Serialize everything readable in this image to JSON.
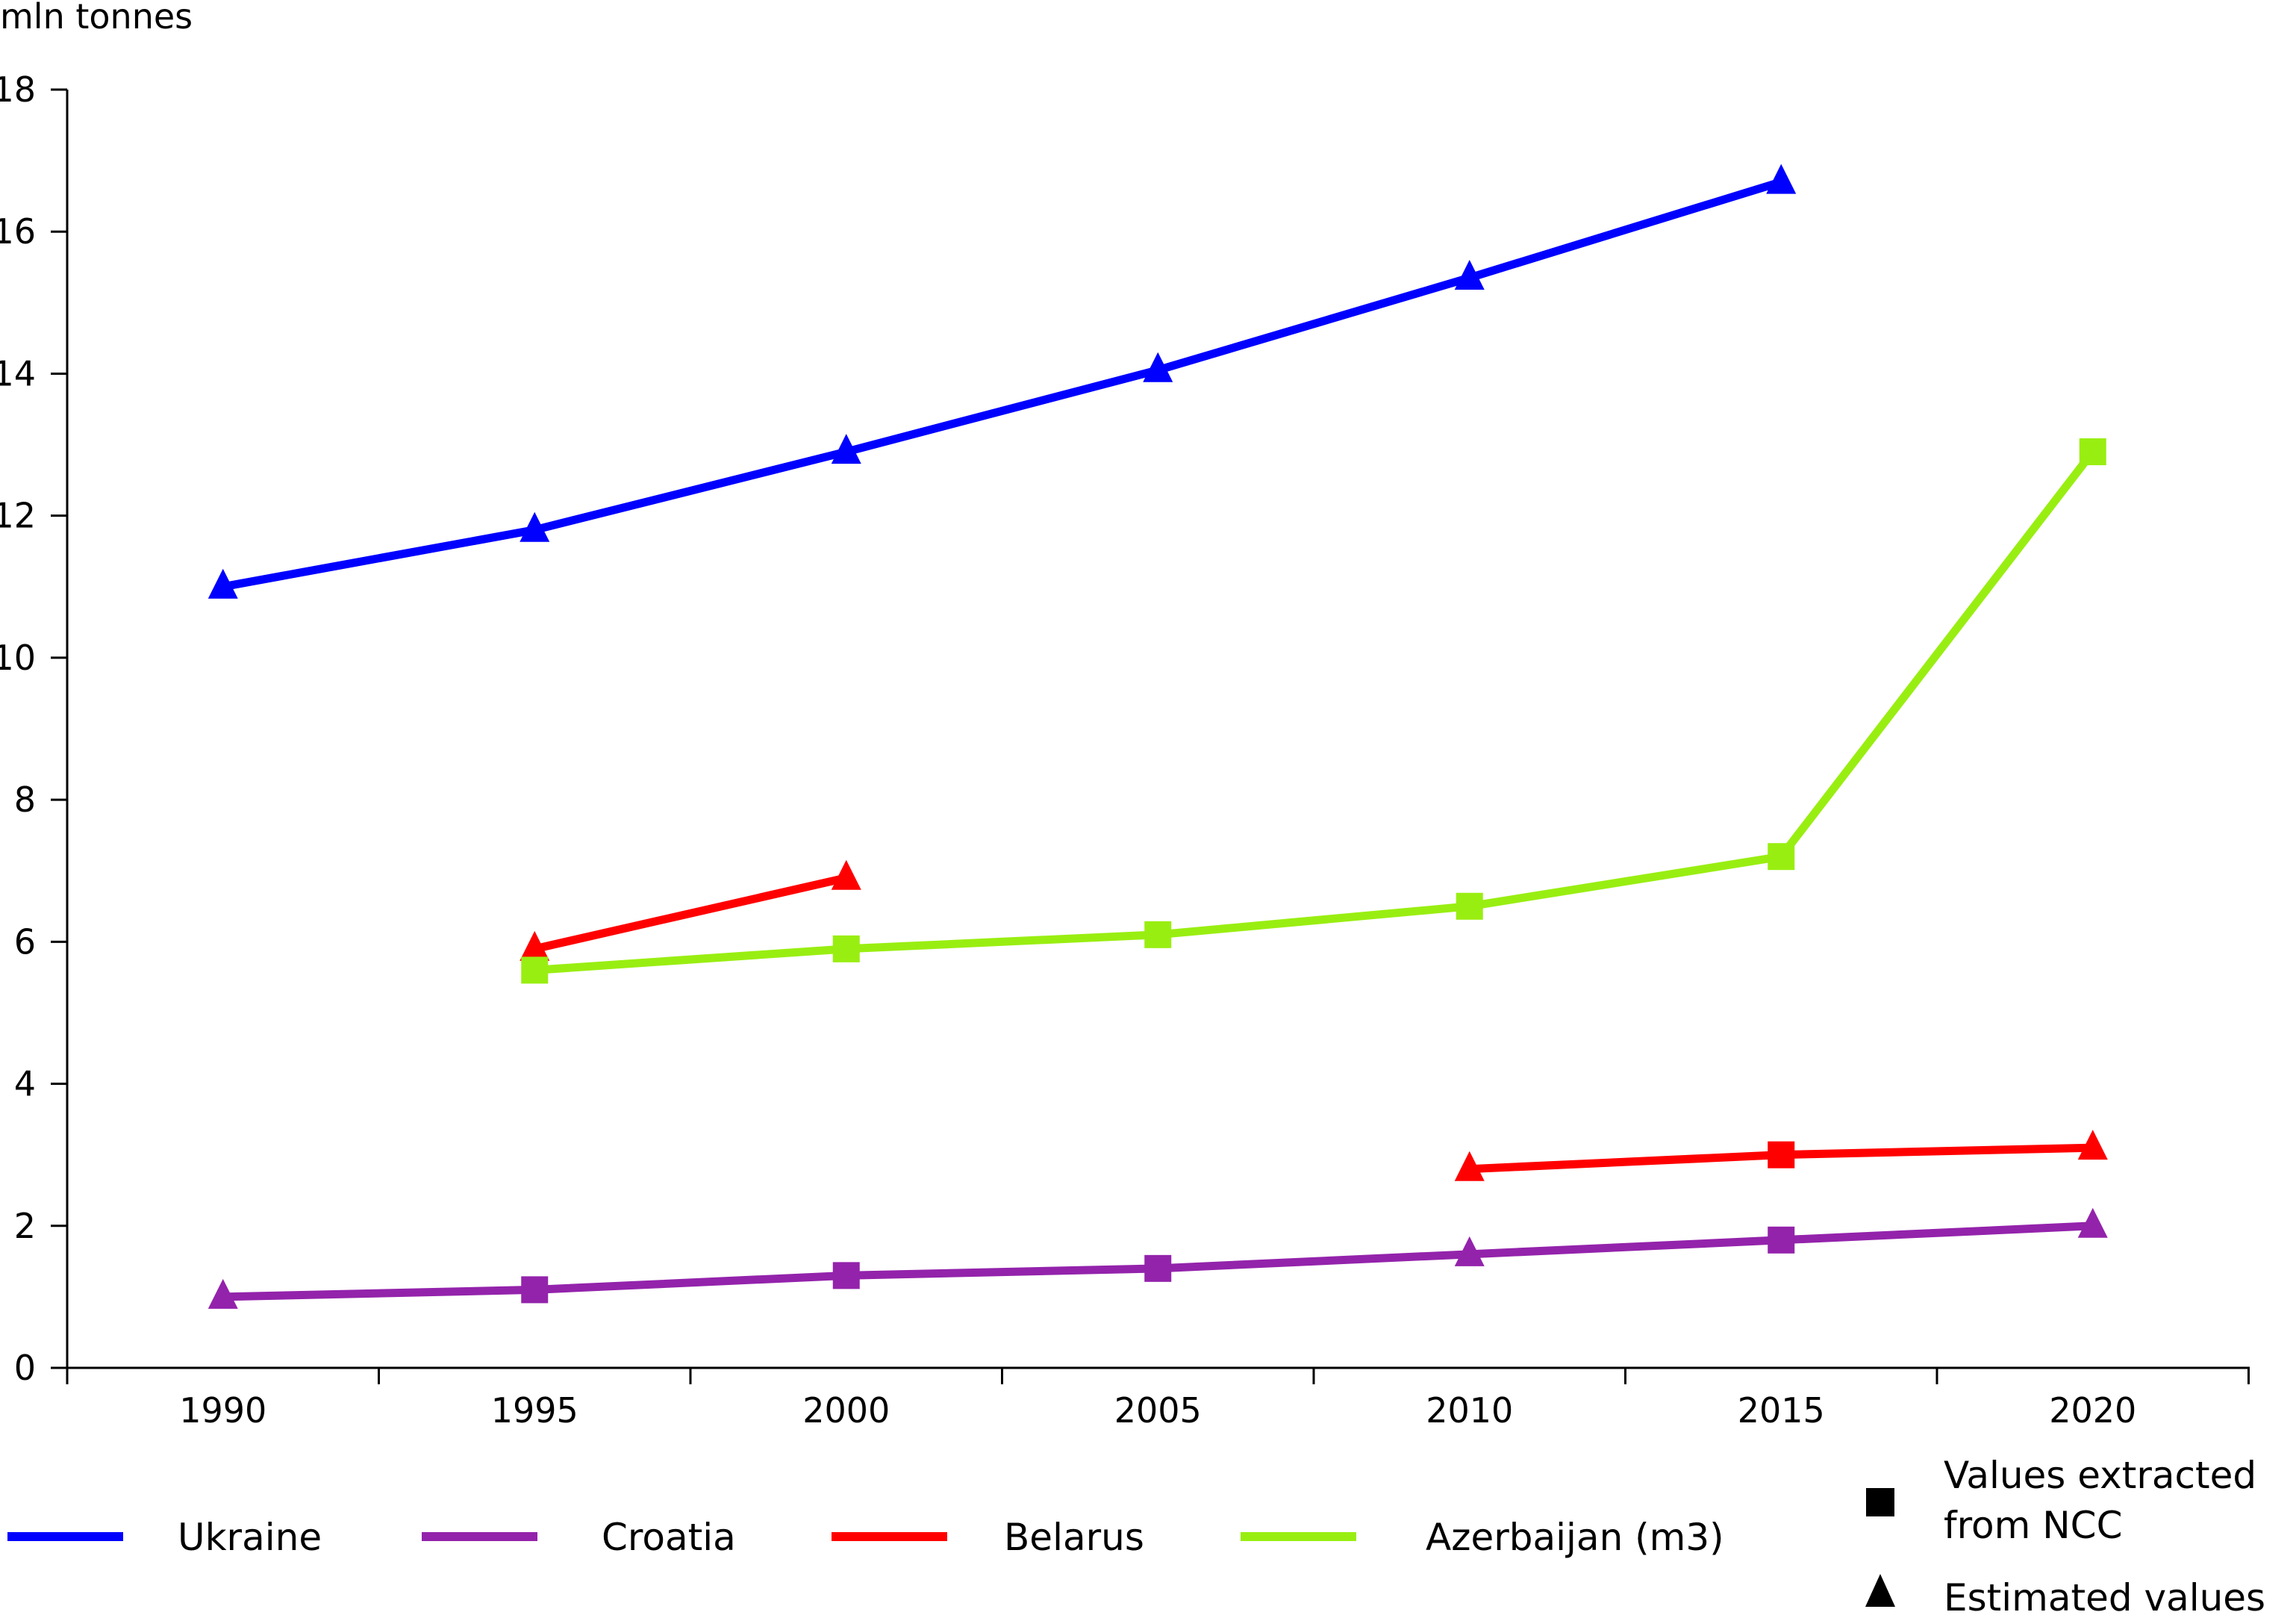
{
  "chart_data": {
    "type": "line",
    "ylabel": "mln tonnes",
    "ylim": [
      0,
      18
    ],
    "yticks": [
      0,
      2,
      4,
      6,
      8,
      10,
      12,
      14,
      16,
      18
    ],
    "categories": [
      "1990",
      "1995",
      "2000",
      "2005",
      "2010",
      "2015",
      "2020"
    ],
    "grid": false,
    "legend_position": "bottom",
    "series": [
      {
        "name": "Ukraine",
        "color": "#0000ff",
        "segments": [
          [
            {
              "x": "1990",
              "y": 11.0,
              "marker": "triangle"
            },
            {
              "x": "1995",
              "y": 11.8,
              "marker": "triangle"
            },
            {
              "x": "2000",
              "y": 12.9,
              "marker": "triangle"
            },
            {
              "x": "2005",
              "y": 14.05,
              "marker": "triangle"
            },
            {
              "x": "2010",
              "y": 15.35,
              "marker": "triangle"
            },
            {
              "x": "2015",
              "y": 16.7,
              "marker": "triangle"
            }
          ]
        ]
      },
      {
        "name": "Croatia",
        "color": "#9323ab",
        "segments": [
          [
            {
              "x": "1990",
              "y": 1.0,
              "marker": "triangle"
            },
            {
              "x": "1995",
              "y": 1.1,
              "marker": "square"
            },
            {
              "x": "2000",
              "y": 1.3,
              "marker": "square"
            },
            {
              "x": "2005",
              "y": 1.4,
              "marker": "square"
            },
            {
              "x": "2010",
              "y": 1.6,
              "marker": "triangle"
            },
            {
              "x": "2015",
              "y": 1.8,
              "marker": "square"
            },
            {
              "x": "2020",
              "y": 2.0,
              "marker": "triangle"
            }
          ]
        ]
      },
      {
        "name": "Belarus",
        "color": "#ff0000",
        "segments": [
          [
            {
              "x": "1995",
              "y": 5.9,
              "marker": "triangle"
            },
            {
              "x": "2000",
              "y": 6.9,
              "marker": "triangle"
            }
          ],
          [
            {
              "x": "2010",
              "y": 2.8,
              "marker": "triangle"
            },
            {
              "x": "2015",
              "y": 3.0,
              "marker": "square"
            },
            {
              "x": "2020",
              "y": 3.1,
              "marker": "triangle"
            }
          ]
        ]
      },
      {
        "name": "Azerbaijan (m3)",
        "color": "#99ee11",
        "segments": [
          [
            {
              "x": "1995",
              "y": 5.6,
              "marker": "square"
            },
            {
              "x": "2000",
              "y": 5.9,
              "marker": "square"
            },
            {
              "x": "2005",
              "y": 6.1,
              "marker": "square"
            },
            {
              "x": "2010",
              "y": 6.5,
              "marker": "square"
            },
            {
              "x": "2015",
              "y": 7.2,
              "marker": "square"
            },
            {
              "x": "2020",
              "y": 12.9,
              "marker": "square"
            }
          ]
        ]
      }
    ],
    "marker_legend": {
      "square_lines": [
        "Values extracted",
        "from NCC"
      ],
      "triangle_label": "Estimated values"
    }
  }
}
